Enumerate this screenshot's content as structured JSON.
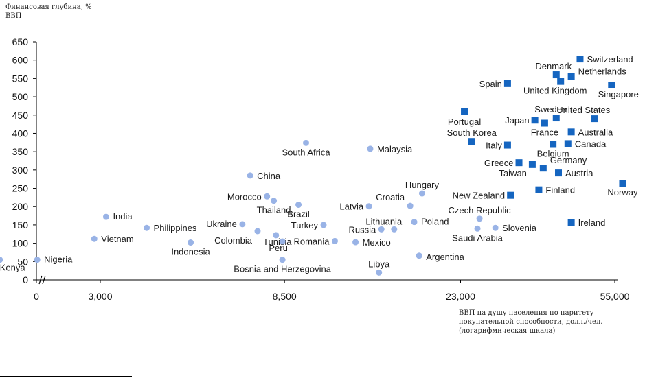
{
  "chart_data": {
    "type": "scatter",
    "ylabel": "Финансовая глубина, %\nВВП",
    "xlabel": "ВВП на душу населения по паритету покупательной способности, долл./чел. (логарифмическая шкала)",
    "x_scale": "log",
    "x_ticks": [
      0,
      3000,
      8500,
      23000,
      55000
    ],
    "x_tick_labels": [
      "0",
      "3,000",
      "8,500",
      "23,000",
      "55,000"
    ],
    "x_axis_break": true,
    "ylim": [
      0,
      650
    ],
    "y_ticks": [
      0,
      50,
      100,
      150,
      200,
      250,
      300,
      350,
      400,
      450,
      500,
      550,
      600,
      650
    ],
    "grid": false,
    "colors": {
      "circle": "#99b3e6",
      "square": "#1565c0",
      "axis": "#000000",
      "label": "#1a1a1a"
    },
    "series": [
      {
        "marker": "circle",
        "points": [
          {
            "label": "Kenya",
            "x": 1700,
            "y": 55
          },
          {
            "label": "Nigeria",
            "x": 2100,
            "y": 55
          },
          {
            "label": "India",
            "x": 3100,
            "y": 172
          },
          {
            "label": "Philippines",
            "x": 3900,
            "y": 142
          },
          {
            "label": "Vietnam",
            "x": 2900,
            "y": 112
          },
          {
            "label": "Indonesia",
            "x": 5000,
            "y": 102
          },
          {
            "label": "Ukraine",
            "x": 6700,
            "y": 152
          },
          {
            "label": "Morocco",
            "x": 7700,
            "y": 228
          },
          {
            "label": "Thailand",
            "x": 8000,
            "y": 216
          },
          {
            "label": "China",
            "x": 7000,
            "y": 285
          },
          {
            "label": "Colombia",
            "x": 7300,
            "y": 133
          },
          {
            "label": "Tunisia",
            "x": 8100,
            "y": 122
          },
          {
            "label": "Peru",
            "x": 8400,
            "y": 105
          },
          {
            "label": "Bosnia and Herzegovina",
            "x": 8400,
            "y": 55
          },
          {
            "label": "Brazil",
            "x": 9200,
            "y": 205
          },
          {
            "label": "South Africa",
            "x": 9600,
            "y": 374
          },
          {
            "label": "Turkey",
            "x": 10600,
            "y": 150
          },
          {
            "label": "Romania",
            "x": 11300,
            "y": 106
          },
          {
            "label": "Mexico",
            "x": 12700,
            "y": 103
          },
          {
            "label": "Latvia",
            "x": 13700,
            "y": 201
          },
          {
            "label": "Malaysia",
            "x": 13800,
            "y": 358
          },
          {
            "label": "Russia",
            "x": 14700,
            "y": 138
          },
          {
            "label": "Libya",
            "x": 14500,
            "y": 20
          },
          {
            "label": "Lithuania",
            "x": 15800,
            "y": 138
          },
          {
            "label": "Croatia",
            "x": 17300,
            "y": 202
          },
          {
            "label": "Poland",
            "x": 17700,
            "y": 158
          },
          {
            "label": "Hungary",
            "x": 18500,
            "y": 236
          },
          {
            "label": "Argentina",
            "x": 18200,
            "y": 66
          },
          {
            "label": "Czech Republic",
            "x": 25600,
            "y": 167
          },
          {
            "label": "Saudi Arabia",
            "x": 25300,
            "y": 140
          },
          {
            "label": "Slovenia",
            "x": 28000,
            "y": 142
          }
        ]
      },
      {
        "marker": "square",
        "points": [
          {
            "label": "Switzerland",
            "x": 45200,
            "y": 603
          },
          {
            "label": "Denmark",
            "x": 39500,
            "y": 560
          },
          {
            "label": "Netherlands",
            "x": 43000,
            "y": 555
          },
          {
            "label": "United Kingdom",
            "x": 40500,
            "y": 542
          },
          {
            "label": "Spain",
            "x": 30000,
            "y": 536
          },
          {
            "label": "Singapore",
            "x": 54000,
            "y": 532
          },
          {
            "label": "Portugal",
            "x": 23500,
            "y": 459
          },
          {
            "label": "Sweden",
            "x": 39500,
            "y": 442
          },
          {
            "label": "United States",
            "x": 49000,
            "y": 440
          },
          {
            "label": "Japan",
            "x": 35000,
            "y": 436
          },
          {
            "label": "France",
            "x": 37000,
            "y": 428
          },
          {
            "label": "Australia",
            "x": 43000,
            "y": 404
          },
          {
            "label": "South Korea",
            "x": 24500,
            "y": 378
          },
          {
            "label": "Italy",
            "x": 30000,
            "y": 368
          },
          {
            "label": "Belgium",
            "x": 38800,
            "y": 370
          },
          {
            "label": "Canada",
            "x": 42200,
            "y": 372
          },
          {
            "label": "Greece",
            "x": 32000,
            "y": 320
          },
          {
            "label": "Taiwan",
            "x": 34500,
            "y": 315
          },
          {
            "label": "Germany",
            "x": 36700,
            "y": 305
          },
          {
            "label": "Austria",
            "x": 40000,
            "y": 292
          },
          {
            "label": "New Zealand",
            "x": 30500,
            "y": 231
          },
          {
            "label": "Finland",
            "x": 35800,
            "y": 246
          },
          {
            "label": "Norway",
            "x": 57500,
            "y": 264
          },
          {
            "label": "Ireland",
            "x": 43000,
            "y": 157
          }
        ]
      }
    ]
  }
}
